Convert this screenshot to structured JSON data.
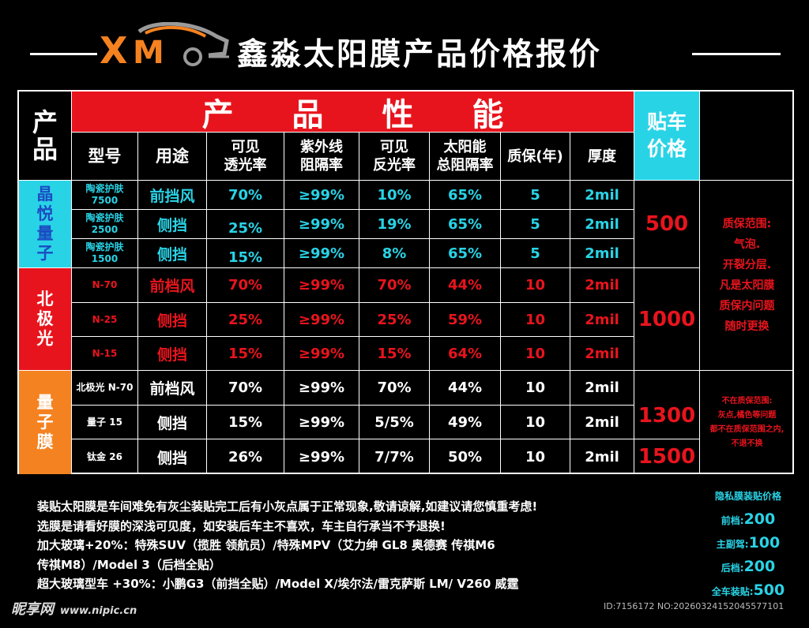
{
  "header": {
    "logo_text": "XM",
    "title": "鑫淼太阳膜产品价格报价"
  },
  "table": {
    "product_header": "产品",
    "performance_header": "产 品 性 能",
    "price_header": "贴车价格",
    "columns": [
      "型号",
      "用途",
      "可见\n透光率",
      "紫外线\n阻隔率",
      "可见\n反光率",
      "太阳能\n总阻隔率",
      "质保(年)",
      "厚度"
    ],
    "groups": [
      {
        "name": "晶悦量子",
        "rows": [
          {
            "model": "陶瓷护肤\n7500",
            "use": "前挡风",
            "vlt": "70%",
            "uv": "≥99%",
            "vlr": "10%",
            "tser": "65%",
            "warranty": "5",
            "thickness": "2mil"
          },
          {
            "model": "陶瓷护肤\n2500",
            "use": "侧挡",
            "vlt": "25%",
            "uv": "≥99%",
            "vlr": "19%",
            "tser": "65%",
            "warranty": "5",
            "thickness": "2mil"
          },
          {
            "model": "陶瓷护肤\n1500",
            "use": "侧挡",
            "vlt": "15%",
            "uv": "≥99%",
            "vlr": "8%",
            "tser": "65%",
            "warranty": "5",
            "thickness": "2mil"
          }
        ]
      },
      {
        "name": "北极光",
        "rows": [
          {
            "model": "N-70",
            "use": "前档风",
            "vlt": "70%",
            "uv": "≥99%",
            "vlr": "70%",
            "tser": "44%",
            "warranty": "10",
            "thickness": "2mil"
          },
          {
            "model": "N-25",
            "use": "侧挡",
            "vlt": "25%",
            "uv": "≥99%",
            "vlr": "25%",
            "tser": "59%",
            "warranty": "10",
            "thickness": "2mil"
          },
          {
            "model": "N-15",
            "use": "侧挡",
            "vlt": "15%",
            "uv": "≥99%",
            "vlr": "15%",
            "tser": "64%",
            "warranty": "10",
            "thickness": "2mil"
          }
        ]
      },
      {
        "name": "量子膜",
        "rows": [
          {
            "model": "北极光 N-70",
            "use": "前档风",
            "vlt": "70%",
            "uv": "≥99%",
            "vlr": "70%",
            "tser": "44%",
            "warranty": "10",
            "thickness": "2mil"
          },
          {
            "model": "量子 15",
            "use": "侧挡",
            "vlt": "15%",
            "uv": "≥99%",
            "vlr": "5/5%",
            "tser": "49%",
            "warranty": "10",
            "thickness": "2mil"
          },
          {
            "model": "钛金 26",
            "use": "侧挡",
            "vlt": "26%",
            "uv": "≥99%",
            "vlr": "7/7%",
            "tser": "50%",
            "warranty": "10",
            "thickness": "2mil"
          }
        ]
      }
    ],
    "prices": [
      "500",
      "1000",
      "1300",
      "1500"
    ],
    "warranty_scope": [
      "质保范围:",
      "气泡.",
      "开裂分层.",
      "凡是太阳膜",
      "质保内问题",
      "随时更换"
    ],
    "warranty_exclusion": [
      "不在质保范围:",
      "灰点,橘色等问题",
      "都不在质保范围之内,",
      "不退不换"
    ]
  },
  "notes": [
    "装贴太阳膜是车间难免有灰尘装贴完工后有小灰点属于正常现象,敬请谅解,如建议请您慎重考虑!",
    "选膜是请看好膜的深浅可见度，如安装后车主不喜欢，车主自行承当不予退换!",
    "加大玻璃+20%：特殊SUV（揽胜 领航员）/特殊MPV（艾力绅 GL8 奥德赛 传祺M6",
    "传祺M8）/Model 3（后档全贴）",
    "超大玻璃型车 +30%：小鹏G3（前挡全贴）/Model X/埃尔法/雷克萨斯 LM/ V260 威霆"
  ],
  "privacy_film": {
    "title": "隐私膜装贴价格",
    "items": [
      {
        "label": "前档:",
        "price": "200"
      },
      {
        "label": "主副驾:",
        "price": "100"
      },
      {
        "label": "后档:",
        "price": "200"
      },
      {
        "label": "全车装贴:",
        "price": "500"
      }
    ]
  },
  "footer": {
    "watermark": "昵享网",
    "watermark_site": "www.nipic.cn",
    "image_id": "ID:7156172 NO:20260324152045577101"
  },
  "colors": {
    "red": "#e8141d",
    "cyan": "#29d3e6",
    "orange": "#f58220",
    "blue_text": "#1b4cc2"
  }
}
